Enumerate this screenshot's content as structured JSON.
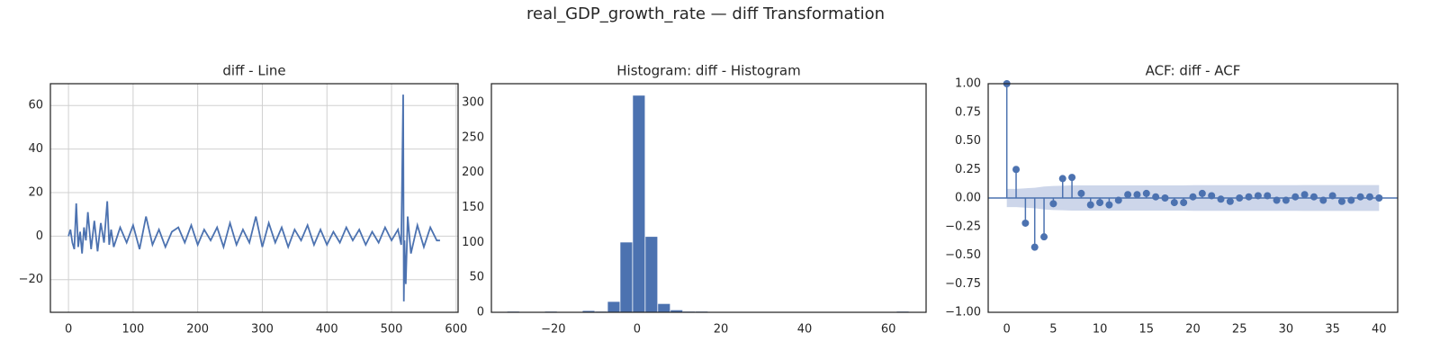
{
  "title": "real_GDP_growth_rate — diff Transformation",
  "chart_data": [
    {
      "type": "line",
      "title": "diff - Line",
      "color": "#4c72b0",
      "grid": true,
      "x": [
        0,
        3,
        6,
        9,
        12,
        15,
        18,
        21,
        24,
        27,
        30,
        35,
        40,
        45,
        50,
        55,
        60,
        63,
        66,
        70,
        80,
        90,
        100,
        110,
        120,
        130,
        140,
        150,
        160,
        170,
        180,
        190,
        200,
        210,
        220,
        230,
        240,
        250,
        260,
        270,
        280,
        290,
        300,
        310,
        320,
        330,
        340,
        350,
        360,
        370,
        380,
        390,
        400,
        410,
        420,
        430,
        440,
        450,
        460,
        470,
        480,
        490,
        500,
        510,
        515,
        518,
        519,
        520,
        522,
        525,
        530,
        540,
        550,
        560,
        570,
        575
      ],
      "values": [
        0,
        3,
        -3,
        -6,
        15,
        -5,
        2,
        -8,
        4,
        -2,
        11,
        -6,
        7,
        -7,
        6,
        -3,
        16,
        -4,
        3,
        -5,
        4,
        -3,
        5,
        -6,
        9,
        -4,
        3,
        -5,
        2,
        4,
        -3,
        5,
        -4,
        3,
        -2,
        4,
        -5,
        6,
        -4,
        3,
        -3,
        9,
        -5,
        6,
        -3,
        4,
        -5,
        3,
        -2,
        5,
        -4,
        3,
        -4,
        2,
        -3,
        4,
        -2,
        3,
        -4,
        2,
        -3,
        4,
        -2,
        3,
        -4,
        65,
        -30,
        -2,
        -22,
        9,
        -8,
        5,
        -5,
        4,
        -2,
        -2
      ],
      "xlim": [
        -28,
        603
      ],
      "ylim": [
        -35,
        70
      ],
      "xticks": [
        0,
        100,
        200,
        300,
        400,
        500,
        600
      ],
      "yticks": [
        {
          "value": -20,
          "label": "−20"
        },
        0,
        20,
        40,
        60
      ]
    },
    {
      "type": "histogram",
      "title": "Histogram: diff - Histogram",
      "color": "#4c72b0",
      "grid": false,
      "bins": [
        -31,
        -28,
        -25,
        -22,
        -19,
        -16,
        -13,
        -10,
        -7,
        -4,
        -1,
        2,
        5,
        8,
        11,
        14,
        17,
        20,
        23,
        26,
        29,
        32,
        35,
        38,
        41,
        44,
        47,
        50,
        53,
        56,
        59,
        62,
        65
      ],
      "values": [
        1,
        0,
        0,
        1,
        0,
        0,
        2,
        1,
        15,
        100,
        310,
        108,
        12,
        3,
        1,
        1,
        0,
        0,
        0,
        0,
        0,
        0,
        0,
        0,
        0,
        0,
        0,
        0,
        0,
        0,
        0,
        1
      ],
      "xlim": [
        -34.8,
        69
      ],
      "ylim": [
        0,
        327
      ],
      "xticks": [
        {
          "value": -20,
          "label": "−20"
        },
        0,
        20,
        40,
        60
      ],
      "yticks": [
        0,
        50,
        100,
        150,
        200,
        250,
        300
      ]
    },
    {
      "type": "acf",
      "title": "ACF: diff - ACF",
      "color": "#4c72b0",
      "band_color": "#c4cfe6",
      "grid": false,
      "x": [
        0,
        1,
        2,
        3,
        4,
        5,
        6,
        7,
        8,
        9,
        10,
        11,
        12,
        13,
        14,
        15,
        16,
        17,
        18,
        19,
        20,
        21,
        22,
        23,
        24,
        25,
        26,
        27,
        28,
        29,
        30,
        31,
        32,
        33,
        34,
        35,
        36,
        37,
        38,
        39,
        40
      ],
      "values": [
        1,
        0.25,
        -0.22,
        -0.43,
        -0.34,
        -0.05,
        0.17,
        0.18,
        0.04,
        -0.06,
        -0.04,
        -0.06,
        -0.02,
        0.03,
        0.03,
        0.04,
        0.01,
        0,
        -0.04,
        -0.04,
        0.01,
        0.04,
        0.02,
        -0.01,
        -0.03,
        0,
        0.01,
        0.02,
        0.02,
        -0.02,
        -0.02,
        0.01,
        0.03,
        0.01,
        -0.02,
        0.02,
        -0.03,
        -0.02,
        0.01,
        0.01,
        0
      ],
      "band": [
        0.08,
        0.08,
        0.085,
        0.09,
        0.1,
        0.105,
        0.107,
        0.11,
        0.11,
        0.11,
        0.11,
        0.11,
        0.11,
        0.11,
        0.11,
        0.11,
        0.11,
        0.11,
        0.11,
        0.11,
        0.112,
        0.112,
        0.112,
        0.112,
        0.112,
        0.112,
        0.112,
        0.112,
        0.112,
        0.112,
        0.112,
        0.112,
        0.113,
        0.113,
        0.113,
        0.113,
        0.113,
        0.113,
        0.113,
        0.113,
        0.113
      ],
      "xlim": [
        -2,
        42
      ],
      "ylim": [
        -1,
        1
      ],
      "xticks": [
        0,
        5,
        10,
        15,
        20,
        25,
        30,
        35,
        40
      ],
      "yticks": [
        {
          "value": -1,
          "label": "−1.00"
        },
        {
          "value": -0.75,
          "label": "−0.75"
        },
        {
          "value": -0.5,
          "label": "−0.50"
        },
        {
          "value": -0.25,
          "label": "−0.25"
        },
        {
          "value": 0,
          "label": "0.00"
        },
        {
          "value": 0.25,
          "label": "0.25"
        },
        {
          "value": 0.5,
          "label": "0.50"
        },
        {
          "value": 0.75,
          "label": "0.75"
        },
        {
          "value": 1,
          "label": "1.00"
        }
      ]
    }
  ]
}
